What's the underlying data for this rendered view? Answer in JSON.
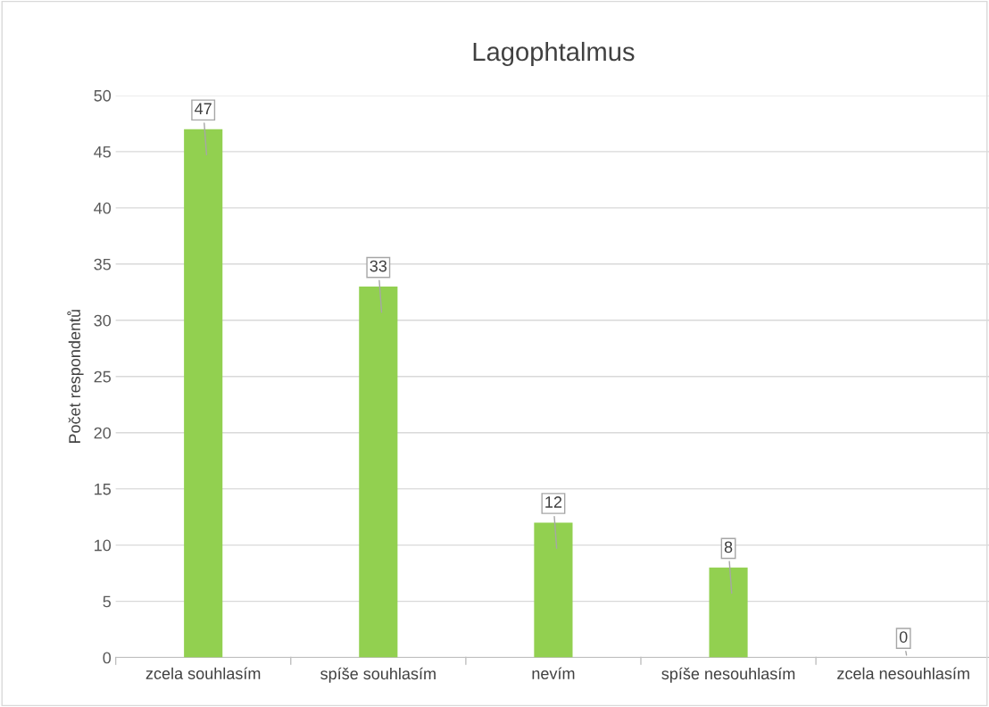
{
  "chart_data": {
    "type": "bar",
    "title": "Lagophtalmus",
    "ylabel": "Počet respondentů",
    "categories": [
      "zcela souhlasím",
      "spíše souhlasím",
      "nevím",
      "spíše nesouhlasím",
      "zcela nesouhlasím"
    ],
    "values": [
      47,
      33,
      12,
      8,
      0
    ],
    "color": "#92d050",
    "ylim": [
      0,
      50
    ],
    "yticks": [
      0,
      5,
      10,
      15,
      20,
      25,
      30,
      35,
      40,
      45,
      50
    ],
    "grid": "y",
    "data_labels": true,
    "legend": false
  }
}
